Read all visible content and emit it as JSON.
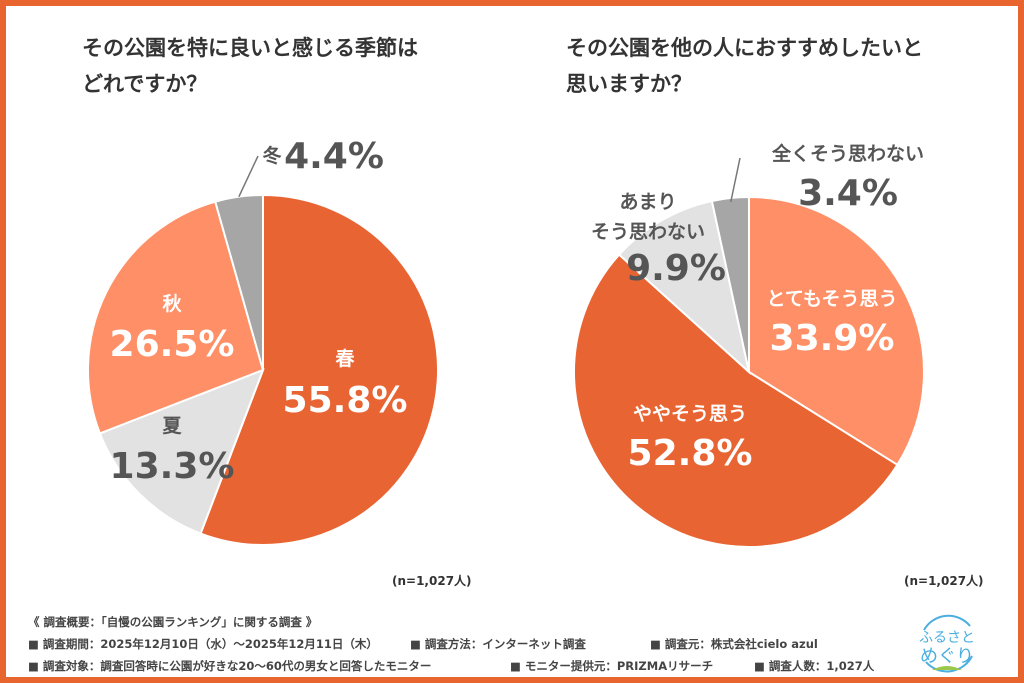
{
  "colors": {
    "border": "#E8652F",
    "dark_orange": "#E86432",
    "light_orange": "#FF8F66",
    "light_gray": "#E2E2E2",
    "gray": "#A6A6A6",
    "logo_blue": "#4AAEE0",
    "logo_green": "#9CC84A"
  },
  "chart_data": [
    {
      "type": "pie",
      "title_line1": "その公園を特に良いと感じる季節は",
      "title_line2": "どれですか？",
      "sample": "(n=1,027人)",
      "slices": [
        {
          "label": "春",
          "value": 55.8,
          "value_text": "55.8%",
          "color": "#E86432"
        },
        {
          "label": "夏",
          "value": 13.3,
          "value_text": "13.3%",
          "color": "#E2E2E2"
        },
        {
          "label": "秋",
          "value": 26.5,
          "value_text": "26.5%",
          "color": "#FF8F66"
        },
        {
          "label": "冬",
          "value": 4.4,
          "value_text": "4.4%",
          "color": "#A6A6A6"
        }
      ]
    },
    {
      "type": "pie",
      "title_line1": "その公園を他の人におすすめしたいと",
      "title_line2": "思いますか？",
      "sample": "(n=1,027人)",
      "slices": [
        {
          "label": "とてもそう思う",
          "value": 33.9,
          "value_text": "33.9%",
          "color": "#FF8F66"
        },
        {
          "label": "ややそう思う",
          "value": 52.8,
          "value_text": "52.8%",
          "color": "#E86432"
        },
        {
          "label": "あまりそう思わない",
          "label_line1": "あまり",
          "label_line2": "そう思わない",
          "value": 9.9,
          "value_text": "9.9%",
          "color": "#E2E2E2"
        },
        {
          "label": "全くそう思わない",
          "value": 3.4,
          "value_text": "3.4%",
          "color": "#A6A6A6"
        }
      ]
    }
  ],
  "footer": {
    "heading": "《 調査概要：「自慢の公園ランキング」に関する調査 》",
    "period": "■ 調査期間：2025年12月10日（水）～2025年12月11日（木）",
    "method": "■ 調査方法：インターネット調査",
    "source": "■ 調査元：株式会社cielo azul",
    "target": "■ 調査対象：調査回答時に公園が好きな20～60代の男女と回答したモニター",
    "provider": "■ モニター提供元：PRIZMAリサーチ",
    "count": "■ 調査人数：1,027人"
  },
  "logo": {
    "line1": "ふるさと",
    "line2": "めぐり"
  }
}
